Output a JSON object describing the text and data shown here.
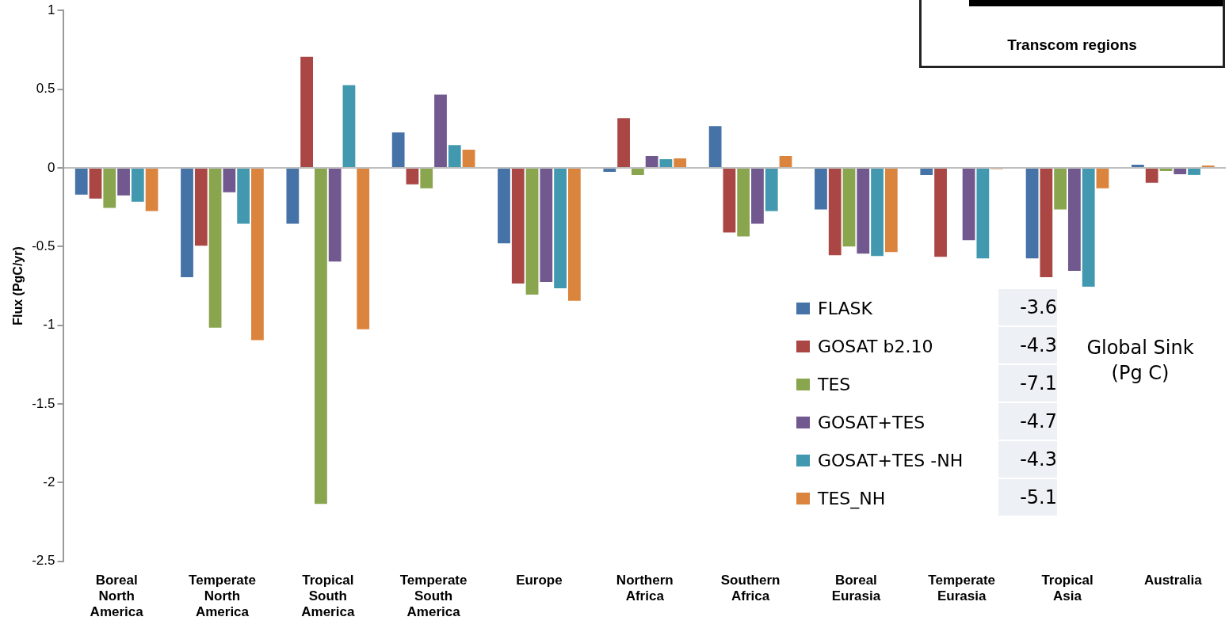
{
  "chart_data": {
    "type": "bar",
    "ylabel": "Flux (PgC/yr)",
    "categories": [
      "Boreal North America",
      "Temperate North America",
      "Tropical South America",
      "Temperate South America",
      "Europe",
      "Northern Africa",
      "Southern Africa",
      "Boreal Eurasia",
      "Temperate Eurasia",
      "Tropical Asia",
      "Australia"
    ],
    "series": [
      {
        "name": "FLASK",
        "color": "#4572a7",
        "values": [
          -0.175,
          -0.7,
          -0.36,
          0.23,
          -0.485,
          -0.03,
          0.27,
          -0.27,
          -0.05,
          -0.58,
          0.025
        ]
      },
      {
        "name": "GOSAT b2.10",
        "color": "#aa4643",
        "values": [
          -0.2,
          -0.5,
          0.71,
          -0.11,
          -0.74,
          0.32,
          -0.415,
          -0.56,
          -0.57,
          -0.7,
          -0.1
        ]
      },
      {
        "name": "TES",
        "color": "#89a54e",
        "values": [
          -0.26,
          -1.02,
          -2.14,
          -0.135,
          -0.81,
          -0.05,
          -0.44,
          -0.505,
          null,
          -0.27,
          -0.025
        ]
      },
      {
        "name": "GOSAT+TES",
        "color": "#71588f",
        "values": [
          -0.18,
          -0.16,
          -0.6,
          0.47,
          -0.73,
          0.08,
          -0.36,
          -0.55,
          -0.465,
          -0.66,
          -0.045
        ]
      },
      {
        "name": "GOSAT+TES -NH",
        "color": "#4198af",
        "values": [
          -0.22,
          -0.36,
          0.53,
          0.15,
          -0.77,
          0.06,
          -0.28,
          -0.565,
          -0.58,
          -0.76,
          -0.05
        ]
      },
      {
        "name": "TES_NH",
        "color": "#db843d",
        "values": [
          -0.28,
          -1.1,
          -1.03,
          0.12,
          -0.85,
          0.065,
          0.08,
          -0.54,
          -0.01,
          -0.135,
          0.02
        ]
      }
    ],
    "ylim": [
      -2.5,
      1
    ],
    "yticks": [
      -2.5,
      -2,
      -1.5,
      -1,
      -0.5,
      0,
      0.5,
      1
    ],
    "legend": "bottom right",
    "annotations": [
      "-3.6",
      "-4.3",
      "-7.1",
      "-4.7",
      "-4.3",
      "-5.1",
      "Global Sink (Pg C)",
      "Transcom regions"
    ]
  }
}
